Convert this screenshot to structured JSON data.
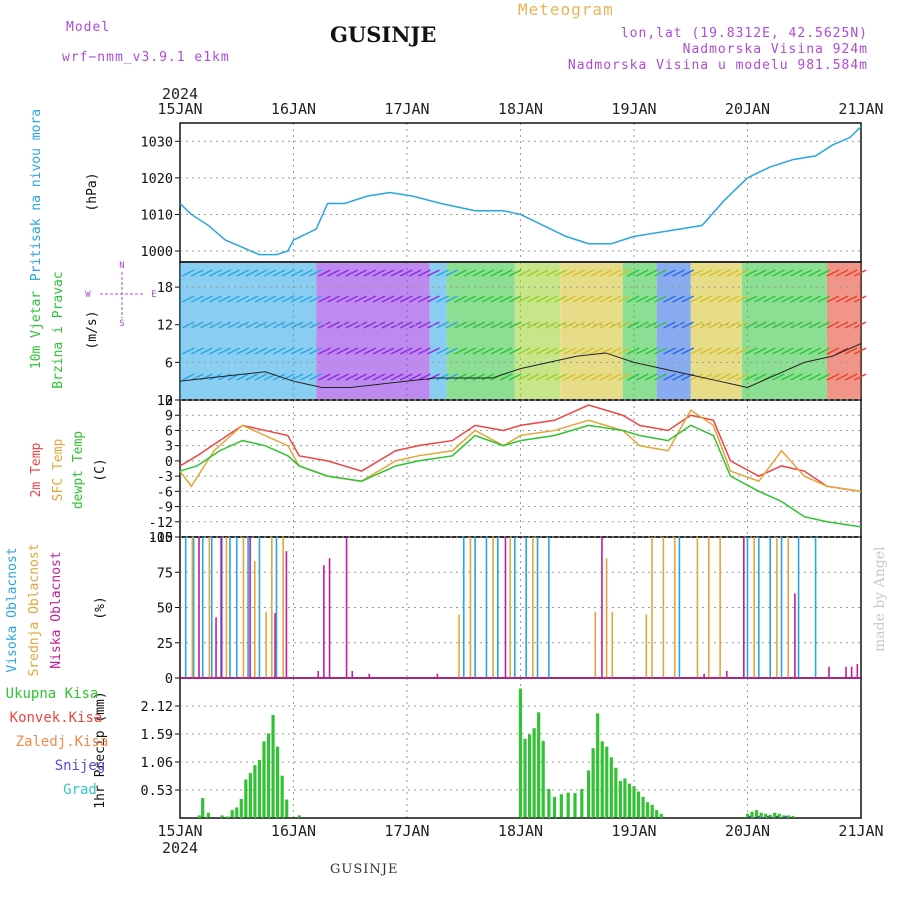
{
  "header": {
    "model_label": "Model",
    "model_name": "wrf−nmm_v3.9.1  e1km",
    "location": "GUSINJE",
    "product": "Meteogram",
    "lonlat": "lon,lat (19.8312E, 42.5625N)",
    "altitude": "Nadmorska Visina 924m",
    "model_altitude": "Nadmorska Visina u modelu 981.584m"
  },
  "footer": {
    "location": "GUSINJE",
    "credit": "made by Angel"
  },
  "colors": {
    "pressure": "#29a6e0",
    "temp": "#ee4444",
    "sfc_temp": "#e3a63a",
    "dewpt": "#2fc32f",
    "cloud_high": "#29a6e0",
    "cloud_mid": "#e3a63a",
    "cloud_low": "#c21d9c",
    "precip_total": "#33c233",
    "precip_conv": "#ee4444",
    "precip_freezing": "#f08a4a",
    "precip_snow": "#5a4ad8",
    "precip_grad": "#33c4c4",
    "wind_axis": "#b04ad8"
  },
  "chart_data": [
    {
      "type": "line",
      "year": "2024",
      "x_ticks": [
        "15JAN",
        "16JAN",
        "17JAN",
        "18JAN",
        "19JAN",
        "20JAN",
        "21JAN"
      ],
      "ylabel": [
        "Pritisak na nivou mora",
        "(hPa)"
      ],
      "yticks": [
        1000,
        1010,
        1020,
        1030
      ],
      "ylim": [
        997,
        1035
      ],
      "grid": true,
      "series": [
        {
          "name": "Pritisak na nivou mora",
          "x": [
            0,
            0.1,
            0.25,
            0.4,
            0.55,
            0.7,
            0.85,
            0.95,
            1.0,
            1.2,
            1.3,
            1.45,
            1.65,
            1.85,
            2.05,
            2.3,
            2.6,
            2.85,
            3.0,
            3.2,
            3.4,
            3.6,
            3.8,
            4.0,
            4.2,
            4.4,
            4.6,
            4.8,
            5.0,
            5.2,
            5.4,
            5.6,
            5.75,
            5.9,
            6.0
          ],
          "y": [
            1013,
            1010,
            1007,
            1003,
            1001,
            999,
            999,
            1000,
            1003,
            1006,
            1013,
            1013,
            1015,
            1016,
            1015,
            1013,
            1011,
            1011,
            1010,
            1007,
            1004,
            1002,
            1002,
            1004,
            1005,
            1006,
            1007,
            1014,
            1020,
            1023,
            1025,
            1026,
            1029,
            1031,
            1034
          ]
        }
      ]
    },
    {
      "type": "scatter",
      "ylabel": [
        "10m Vjetar",
        "Brzina i Pravac",
        "(m/s)"
      ],
      "direction_legend": [
        "N",
        "W",
        "E",
        "S"
      ],
      "yticks": [
        0,
        6,
        12,
        18
      ],
      "ylim": [
        0,
        22
      ],
      "grid": true,
      "series": [
        {
          "name": "10m Vjetar",
          "x": [
            0,
            0.25,
            0.5,
            0.75,
            1.0,
            1.25,
            1.5,
            1.75,
            2.0,
            2.25,
            2.5,
            2.75,
            3.0,
            3.25,
            3.5,
            3.75,
            4.0,
            4.25,
            4.5,
            4.75,
            5.0,
            5.25,
            5.5,
            5.75,
            6.0
          ],
          "y": [
            3,
            3.5,
            4,
            4.5,
            3,
            2,
            2,
            2.5,
            3,
            3.5,
            3.5,
            3.5,
            5,
            6,
            7,
            7.5,
            6,
            5,
            4,
            3,
            2,
            4,
            6,
            7,
            9
          ]
        }
      ]
    },
    {
      "type": "line",
      "ylabel": [
        "2m Temp",
        "SFC Temp",
        "dewpt Temp",
        "(C)"
      ],
      "yticks": [
        -15,
        -12,
        -9,
        -6,
        -3,
        0,
        3,
        6,
        9,
        12
      ],
      "ylim": [
        -15,
        12
      ],
      "grid": true,
      "series": [
        {
          "name": "2m Temp",
          "x": [
            0,
            0.15,
            0.35,
            0.55,
            0.75,
            0.95,
            1.05,
            1.3,
            1.6,
            1.9,
            2.1,
            2.4,
            2.6,
            2.85,
            3.0,
            3.3,
            3.6,
            3.9,
            4.05,
            4.3,
            4.5,
            4.7,
            4.85,
            5.1,
            5.3,
            5.5,
            5.7,
            6.0
          ],
          "y": [
            -1,
            1,
            4,
            7,
            6,
            5,
            1,
            0,
            -2,
            2,
            3,
            4,
            7,
            6,
            7,
            8,
            11,
            9,
            7,
            6,
            9,
            8,
            0,
            -3,
            -1,
            -2,
            -5,
            -6
          ]
        },
        {
          "name": "SFC Temp",
          "x": [
            0,
            0.1,
            0.3,
            0.55,
            0.75,
            0.95,
            1.05,
            1.3,
            1.6,
            1.9,
            2.1,
            2.4,
            2.6,
            2.85,
            3.0,
            3.3,
            3.6,
            3.9,
            4.05,
            4.3,
            4.5,
            4.7,
            4.85,
            5.1,
            5.3,
            5.5,
            5.7,
            6.0
          ],
          "y": [
            -2,
            -5,
            2,
            7,
            5,
            3,
            -1,
            -3,
            -4,
            0,
            1,
            2,
            6,
            3,
            5,
            6,
            8,
            6,
            3,
            2,
            10,
            7,
            -2,
            -4,
            2,
            -3,
            -5,
            -6
          ]
        },
        {
          "name": "dewpt Temp",
          "x": [
            0,
            0.15,
            0.35,
            0.55,
            0.75,
            0.95,
            1.05,
            1.3,
            1.6,
            1.9,
            2.1,
            2.4,
            2.6,
            2.85,
            3.0,
            3.3,
            3.6,
            3.9,
            4.05,
            4.3,
            4.5,
            4.7,
            4.85,
            5.1,
            5.3,
            5.5,
            5.7,
            6.0
          ],
          "y": [
            -2,
            -1,
            2,
            4,
            3,
            1,
            -1,
            -3,
            -4,
            -1,
            0,
            1,
            5,
            3,
            4,
            5,
            7,
            6,
            5,
            4,
            7,
            5,
            -3,
            -6,
            -8,
            -11,
            -12,
            -13
          ]
        }
      ]
    },
    {
      "type": "bar",
      "ylabel": [
        "Visoka Oblacnost",
        "Srednja Oblacnost",
        "Niska Oblacnost",
        "(%)"
      ],
      "yticks": [
        0,
        25,
        50,
        75,
        100
      ],
      "ylim": [
        0,
        100
      ],
      "grid": true,
      "series": [
        {
          "name": "Visoka Oblacnost",
          "x": [
            0.05,
            0.12,
            0.2,
            0.28,
            0.36,
            0.44,
            0.5,
            0.6,
            0.7,
            0.85,
            2.5,
            2.6,
            2.7,
            2.8,
            2.95,
            3.05,
            3.15,
            3.25,
            4.4,
            5.0,
            5.1,
            5.2,
            5.3,
            5.45,
            5.6
          ],
          "y": [
            100,
            100,
            100,
            100,
            100,
            100,
            100,
            100,
            100,
            100,
            100,
            100,
            100,
            100,
            100,
            100,
            100,
            100,
            100,
            100,
            100,
            100,
            100,
            100,
            100
          ]
        },
        {
          "name": "Srednja Oblacnost",
          "x": [
            0.1,
            0.25,
            0.4,
            0.55,
            0.65,
            0.75,
            0.8,
            0.9,
            2.45,
            2.55,
            2.75,
            2.9,
            3.1,
            3.65,
            3.75,
            3.8,
            4.1,
            4.15,
            4.25,
            4.35,
            4.55,
            4.65,
            4.75,
            5.05,
            5.25,
            5.35
          ],
          "y": [
            100,
            100,
            100,
            100,
            83,
            47,
            100,
            100,
            45,
            100,
            100,
            100,
            100,
            47,
            85,
            47,
            45,
            100,
            100,
            100,
            100,
            100,
            100,
            100,
            100,
            100
          ]
        },
        {
          "name": "Niska Oblacnost",
          "x": [
            0.15,
            0.3,
            0.35,
            0.6,
            0.82,
            0.92,
            1.2,
            1.25,
            1.3,
            1.45,
            1.5,
            1.65,
            2.25,
            2.85,
            3.7,
            4.6,
            4.8,
            4.95,
            5.4,
            5.7,
            5.85,
            5.9,
            5.95
          ],
          "y": [
            100,
            43,
            100,
            100,
            46,
            90,
            5,
            80,
            85,
            100,
            5,
            3,
            3,
            100,
            100,
            3,
            5,
            100,
            60,
            8,
            8,
            8,
            10
          ]
        }
      ]
    },
    {
      "type": "bar",
      "xlabel": "",
      "ylabel": [
        "1hr Precip (mm)"
      ],
      "legend": [
        "Ukupna Kisa",
        "Konvek.Kisa",
        "Zaledj.Kisa",
        "Snijeg",
        "Grad"
      ],
      "yticks": [
        0.53,
        1.06,
        1.59,
        2.12
      ],
      "ylim": [
        0,
        2.65
      ],
      "grid": true,
      "series": [
        {
          "name": "Ukupna Kisa",
          "x": [
            0.17,
            0.2,
            0.25,
            0.37,
            0.42,
            0.46,
            0.5,
            0.54,
            0.58,
            0.62,
            0.66,
            0.7,
            0.74,
            0.78,
            0.82,
            0.86,
            0.9,
            0.94,
            1.05,
            3.0,
            3.04,
            3.08,
            3.12,
            3.16,
            3.2,
            3.25,
            3.3,
            3.36,
            3.42,
            3.48,
            3.54,
            3.6,
            3.64,
            3.68,
            3.72,
            3.76,
            3.8,
            3.84,
            3.88,
            3.92,
            3.96,
            4.0,
            4.04,
            4.08,
            4.12,
            4.16,
            4.2,
            4.24,
            5.0,
            5.04,
            5.08,
            5.12,
            5.16,
            5.2,
            5.24,
            5.28,
            5.32,
            5.36,
            5.4
          ],
          "y": [
            0.05,
            0.38,
            0.1,
            0.05,
            0.03,
            0.15,
            0.2,
            0.36,
            0.73,
            0.85,
            1.0,
            1.1,
            1.45,
            1.6,
            1.95,
            1.35,
            0.8,
            0.35,
            0.05,
            2.45,
            1.5,
            1.58,
            1.7,
            2.0,
            1.46,
            0.55,
            0.4,
            0.45,
            0.48,
            0.47,
            0.55,
            0.9,
            1.32,
            1.98,
            1.45,
            1.35,
            1.15,
            0.95,
            0.7,
            0.75,
            0.65,
            0.6,
            0.5,
            0.4,
            0.3,
            0.25,
            0.15,
            0.08,
            0.08,
            0.12,
            0.15,
            0.1,
            0.08,
            0.06,
            0.1,
            0.08,
            0.05,
            0.05,
            0.04
          ]
        }
      ]
    }
  ]
}
